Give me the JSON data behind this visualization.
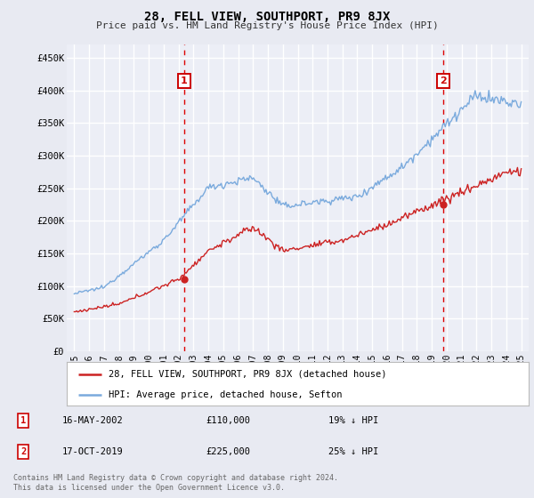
{
  "title": "28, FELL VIEW, SOUTHPORT, PR9 8JX",
  "subtitle": "Price paid vs. HM Land Registry's House Price Index (HPI)",
  "ylabel_ticks": [
    "£0",
    "£50K",
    "£100K",
    "£150K",
    "£200K",
    "£250K",
    "£300K",
    "£350K",
    "£400K",
    "£450K"
  ],
  "ytick_values": [
    0,
    50000,
    100000,
    150000,
    200000,
    250000,
    300000,
    350000,
    400000,
    450000
  ],
  "ylim": [
    0,
    470000
  ],
  "xlim_start": 1994.5,
  "xlim_end": 2025.5,
  "bg_color": "#e8eaf2",
  "plot_bg_color": "#eceef6",
  "grid_color": "#ffffff",
  "hpi_color": "#7aaadd",
  "price_color": "#cc2222",
  "marker1_x": 2002.37,
  "marker1_y": 110000,
  "marker2_x": 2019.79,
  "marker2_y": 225000,
  "legend_label1": "28, FELL VIEW, SOUTHPORT, PR9 8JX (detached house)",
  "legend_label2": "HPI: Average price, detached house, Sefton",
  "annotation1_date": "16-MAY-2002",
  "annotation1_price": "£110,000",
  "annotation1_hpi": "19% ↓ HPI",
  "annotation2_date": "17-OCT-2019",
  "annotation2_price": "£225,000",
  "annotation2_hpi": "25% ↓ HPI",
  "footer": "Contains HM Land Registry data © Crown copyright and database right 2024.\nThis data is licensed under the Open Government Licence v3.0."
}
